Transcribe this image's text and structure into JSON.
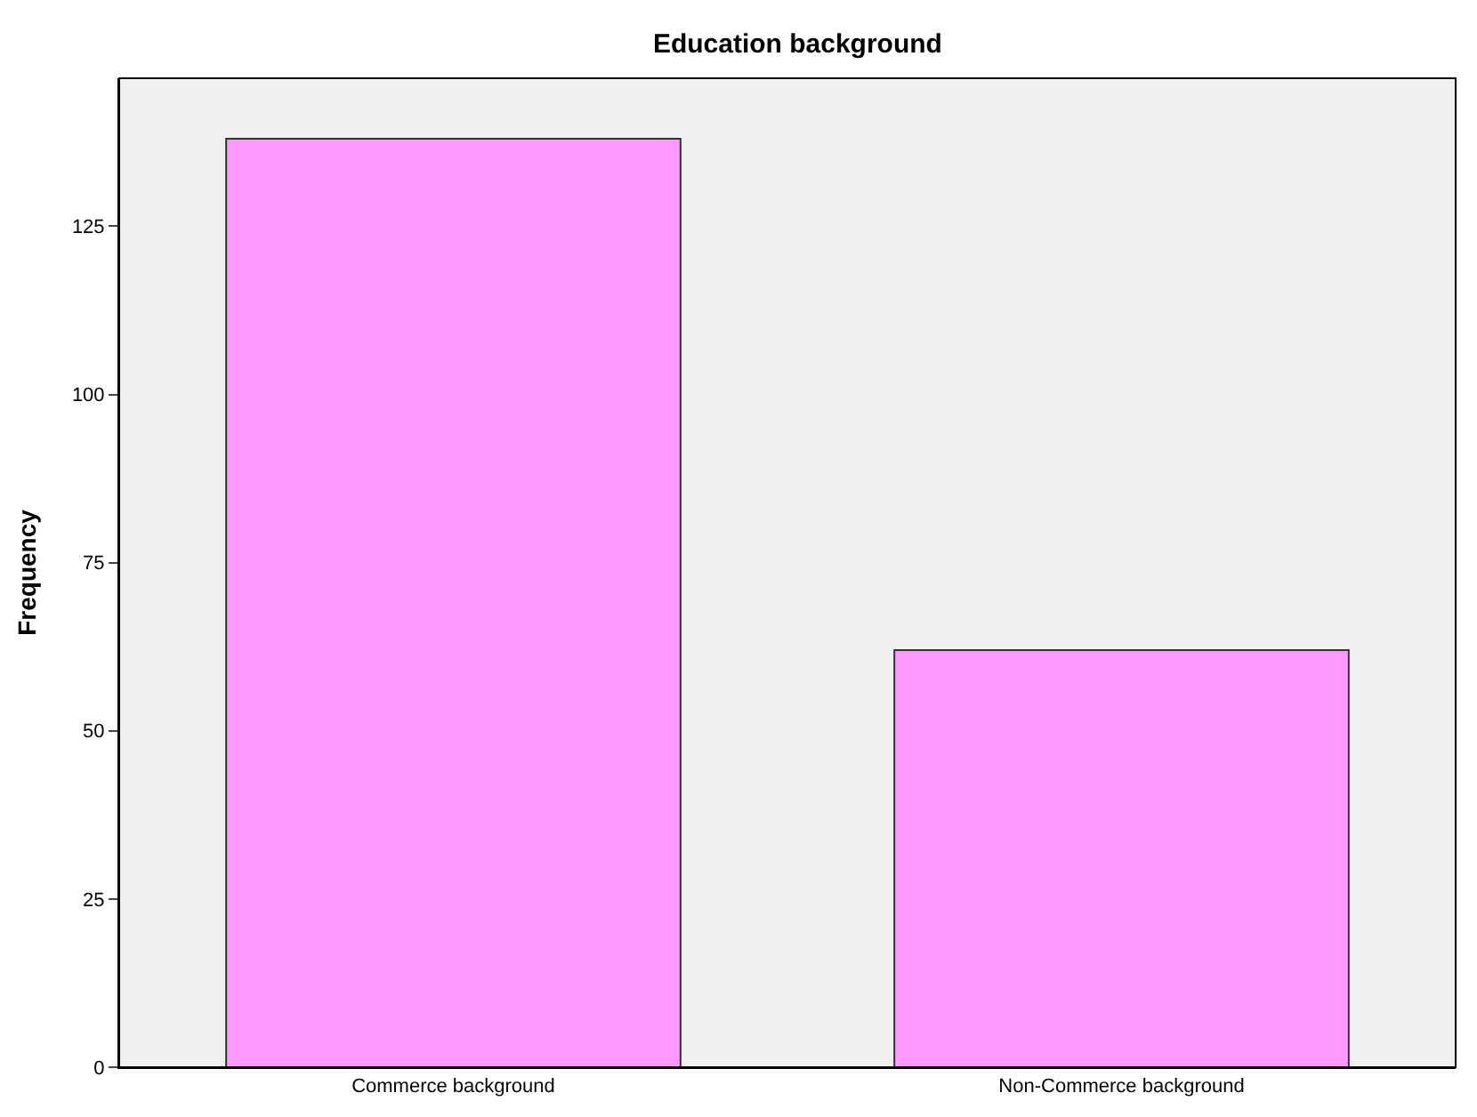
{
  "chart_data": {
    "type": "bar",
    "title": "Education background",
    "ylabel": "Frequency",
    "categories": [
      "Commerce background",
      "Non-Commerce background"
    ],
    "values": [
      138,
      62
    ],
    "color": "#ff99ff",
    "ylim": [
      0,
      147
    ],
    "yticks": [
      0,
      25,
      50,
      75,
      100,
      125
    ],
    "grid": false
  }
}
